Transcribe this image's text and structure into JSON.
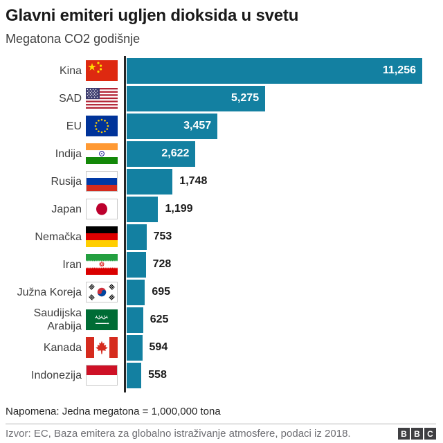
{
  "header": {
    "title": "Glavni emiteri ugljen dioksida u svetu",
    "subtitle": "Megatona CO2 godišnje"
  },
  "chart_data": {
    "type": "bar",
    "orientation": "horizontal",
    "title": "Glavni emiteri ugljen dioksida u svetu",
    "xlabel": "Megatona CO2 godišnje",
    "categories": [
      "Kina",
      "SAD",
      "EU",
      "Indija",
      "Rusija",
      "Japan",
      "Nemačka",
      "Iran",
      "Južna Koreja",
      "Saudijska Arabija",
      "Kanada",
      "Indonezija"
    ],
    "values": [
      11256,
      5275,
      3457,
      2622,
      1748,
      1199,
      753,
      728,
      695,
      625,
      594,
      558
    ],
    "value_labels": [
      "11,256",
      "5,275",
      "3,457",
      "2,622",
      "1,748",
      "1,199",
      "753",
      "728",
      "695",
      "625",
      "594",
      "558"
    ],
    "flags": [
      "china",
      "usa",
      "eu",
      "india",
      "russia",
      "japan",
      "germany",
      "iran",
      "south-korea",
      "saudi-arabia",
      "canada",
      "indonesia"
    ],
    "xlim": [
      0,
      11256
    ],
    "bar_color": "#1380A1",
    "grid": false,
    "legend": false
  },
  "footer": {
    "note": "Napomena: Jedna megatona = 1,000,000 tona",
    "source": "Izvor: EC, Baza emitera za globalno istraživanje atmosfere, podaci iz 2018.",
    "logo_letters": [
      "B",
      "B",
      "C"
    ]
  },
  "colors": {
    "bar": "#1380A1",
    "axis": "#262626",
    "value_inside": "#ffffff",
    "value_outside": "#1a1a1a",
    "source_text": "#6e6e73",
    "logo_box": "#3f3f42"
  }
}
